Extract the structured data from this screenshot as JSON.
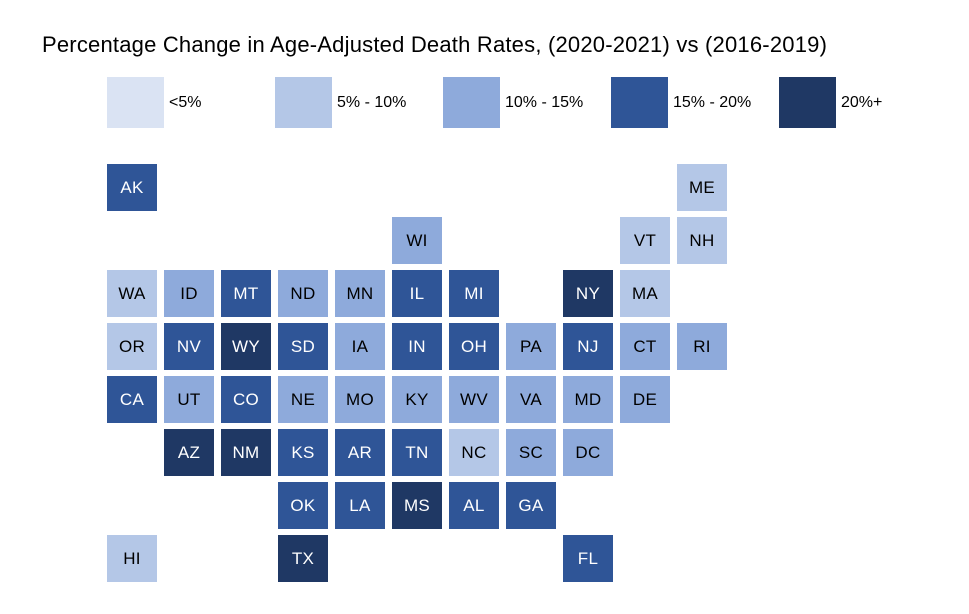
{
  "title": "Percentage Change in Age-Adjusted Death Rates, (2020-2021) vs (2016-2019)",
  "chart_data": {
    "type": "heatmap",
    "subtype": "us-state-tile-grid-map",
    "title": "Percentage Change in Age-Adjusted Death Rates, (2020-2021) vs (2016-2019)",
    "legend_position": "top",
    "categories": [
      "<5%",
      "5% - 10%",
      "10% - 15%",
      "15% - 20%",
      "20%+"
    ],
    "palette": [
      "#dae3f3",
      "#b4c7e7",
      "#8eaadb",
      "#2f5597",
      "#1f3864"
    ],
    "text_colors": [
      "#000000",
      "#000000",
      "#000000",
      "#ffffff",
      "#ffffff"
    ],
    "states": [
      {
        "code": "AK",
        "row": 1,
        "col": 1,
        "value": "15% - 20%"
      },
      {
        "code": "ME",
        "row": 1,
        "col": 11,
        "value": "5% - 10%"
      },
      {
        "code": "WI",
        "row": 2,
        "col": 6,
        "value": "10% - 15%"
      },
      {
        "code": "VT",
        "row": 2,
        "col": 10,
        "value": "5% - 10%"
      },
      {
        "code": "NH",
        "row": 2,
        "col": 11,
        "value": "5% - 10%"
      },
      {
        "code": "WA",
        "row": 3,
        "col": 1,
        "value": "5% - 10%"
      },
      {
        "code": "ID",
        "row": 3,
        "col": 2,
        "value": "10% - 15%"
      },
      {
        "code": "MT",
        "row": 3,
        "col": 3,
        "value": "15% - 20%"
      },
      {
        "code": "ND",
        "row": 3,
        "col": 4,
        "value": "10% - 15%"
      },
      {
        "code": "MN",
        "row": 3,
        "col": 5,
        "value": "10% - 15%"
      },
      {
        "code": "IL",
        "row": 3,
        "col": 6,
        "value": "15% - 20%"
      },
      {
        "code": "MI",
        "row": 3,
        "col": 7,
        "value": "15% - 20%"
      },
      {
        "code": "NY",
        "row": 3,
        "col": 9,
        "value": "20%+"
      },
      {
        "code": "MA",
        "row": 3,
        "col": 10,
        "value": "5% - 10%"
      },
      {
        "code": "OR",
        "row": 4,
        "col": 1,
        "value": "5% - 10%"
      },
      {
        "code": "NV",
        "row": 4,
        "col": 2,
        "value": "15% - 20%"
      },
      {
        "code": "WY",
        "row": 4,
        "col": 3,
        "value": "20%+"
      },
      {
        "code": "SD",
        "row": 4,
        "col": 4,
        "value": "15% - 20%"
      },
      {
        "code": "IA",
        "row": 4,
        "col": 5,
        "value": "10% - 15%"
      },
      {
        "code": "IN",
        "row": 4,
        "col": 6,
        "value": "15% - 20%"
      },
      {
        "code": "OH",
        "row": 4,
        "col": 7,
        "value": "15% - 20%"
      },
      {
        "code": "PA",
        "row": 4,
        "col": 8,
        "value": "10% - 15%"
      },
      {
        "code": "NJ",
        "row": 4,
        "col": 9,
        "value": "15% - 20%"
      },
      {
        "code": "CT",
        "row": 4,
        "col": 10,
        "value": "10% - 15%"
      },
      {
        "code": "RI",
        "row": 4,
        "col": 11,
        "value": "10% - 15%"
      },
      {
        "code": "CA",
        "row": 5,
        "col": 1,
        "value": "15% - 20%"
      },
      {
        "code": "UT",
        "row": 5,
        "col": 2,
        "value": "10% - 15%"
      },
      {
        "code": "CO",
        "row": 5,
        "col": 3,
        "value": "15% - 20%"
      },
      {
        "code": "NE",
        "row": 5,
        "col": 4,
        "value": "10% - 15%"
      },
      {
        "code": "MO",
        "row": 5,
        "col": 5,
        "value": "10% - 15%"
      },
      {
        "code": "KY",
        "row": 5,
        "col": 6,
        "value": "10% - 15%"
      },
      {
        "code": "WV",
        "row": 5,
        "col": 7,
        "value": "10% - 15%"
      },
      {
        "code": "VA",
        "row": 5,
        "col": 8,
        "value": "10% - 15%"
      },
      {
        "code": "MD",
        "row": 5,
        "col": 9,
        "value": "10% - 15%"
      },
      {
        "code": "DE",
        "row": 5,
        "col": 10,
        "value": "10% - 15%"
      },
      {
        "code": "AZ",
        "row": 6,
        "col": 2,
        "value": "20%+"
      },
      {
        "code": "NM",
        "row": 6,
        "col": 3,
        "value": "20%+"
      },
      {
        "code": "KS",
        "row": 6,
        "col": 4,
        "value": "15% - 20%"
      },
      {
        "code": "AR",
        "row": 6,
        "col": 5,
        "value": "15% - 20%"
      },
      {
        "code": "TN",
        "row": 6,
        "col": 6,
        "value": "15% - 20%"
      },
      {
        "code": "NC",
        "row": 6,
        "col": 7,
        "value": "5% - 10%"
      },
      {
        "code": "SC",
        "row": 6,
        "col": 8,
        "value": "10% - 15%"
      },
      {
        "code": "DC",
        "row": 6,
        "col": 9,
        "value": "10% - 15%"
      },
      {
        "code": "OK",
        "row": 7,
        "col": 4,
        "value": "15% - 20%"
      },
      {
        "code": "LA",
        "row": 7,
        "col": 5,
        "value": "15% - 20%"
      },
      {
        "code": "MS",
        "row": 7,
        "col": 6,
        "value": "20%+"
      },
      {
        "code": "AL",
        "row": 7,
        "col": 7,
        "value": "15% - 20%"
      },
      {
        "code": "GA",
        "row": 7,
        "col": 8,
        "value": "15% - 20%"
      },
      {
        "code": "HI",
        "row": 8,
        "col": 1,
        "value": "5% - 10%"
      },
      {
        "code": "TX",
        "row": 8,
        "col": 4,
        "value": "20%+"
      },
      {
        "code": "FL",
        "row": 8,
        "col": 9,
        "value": "15% - 20%"
      }
    ]
  }
}
